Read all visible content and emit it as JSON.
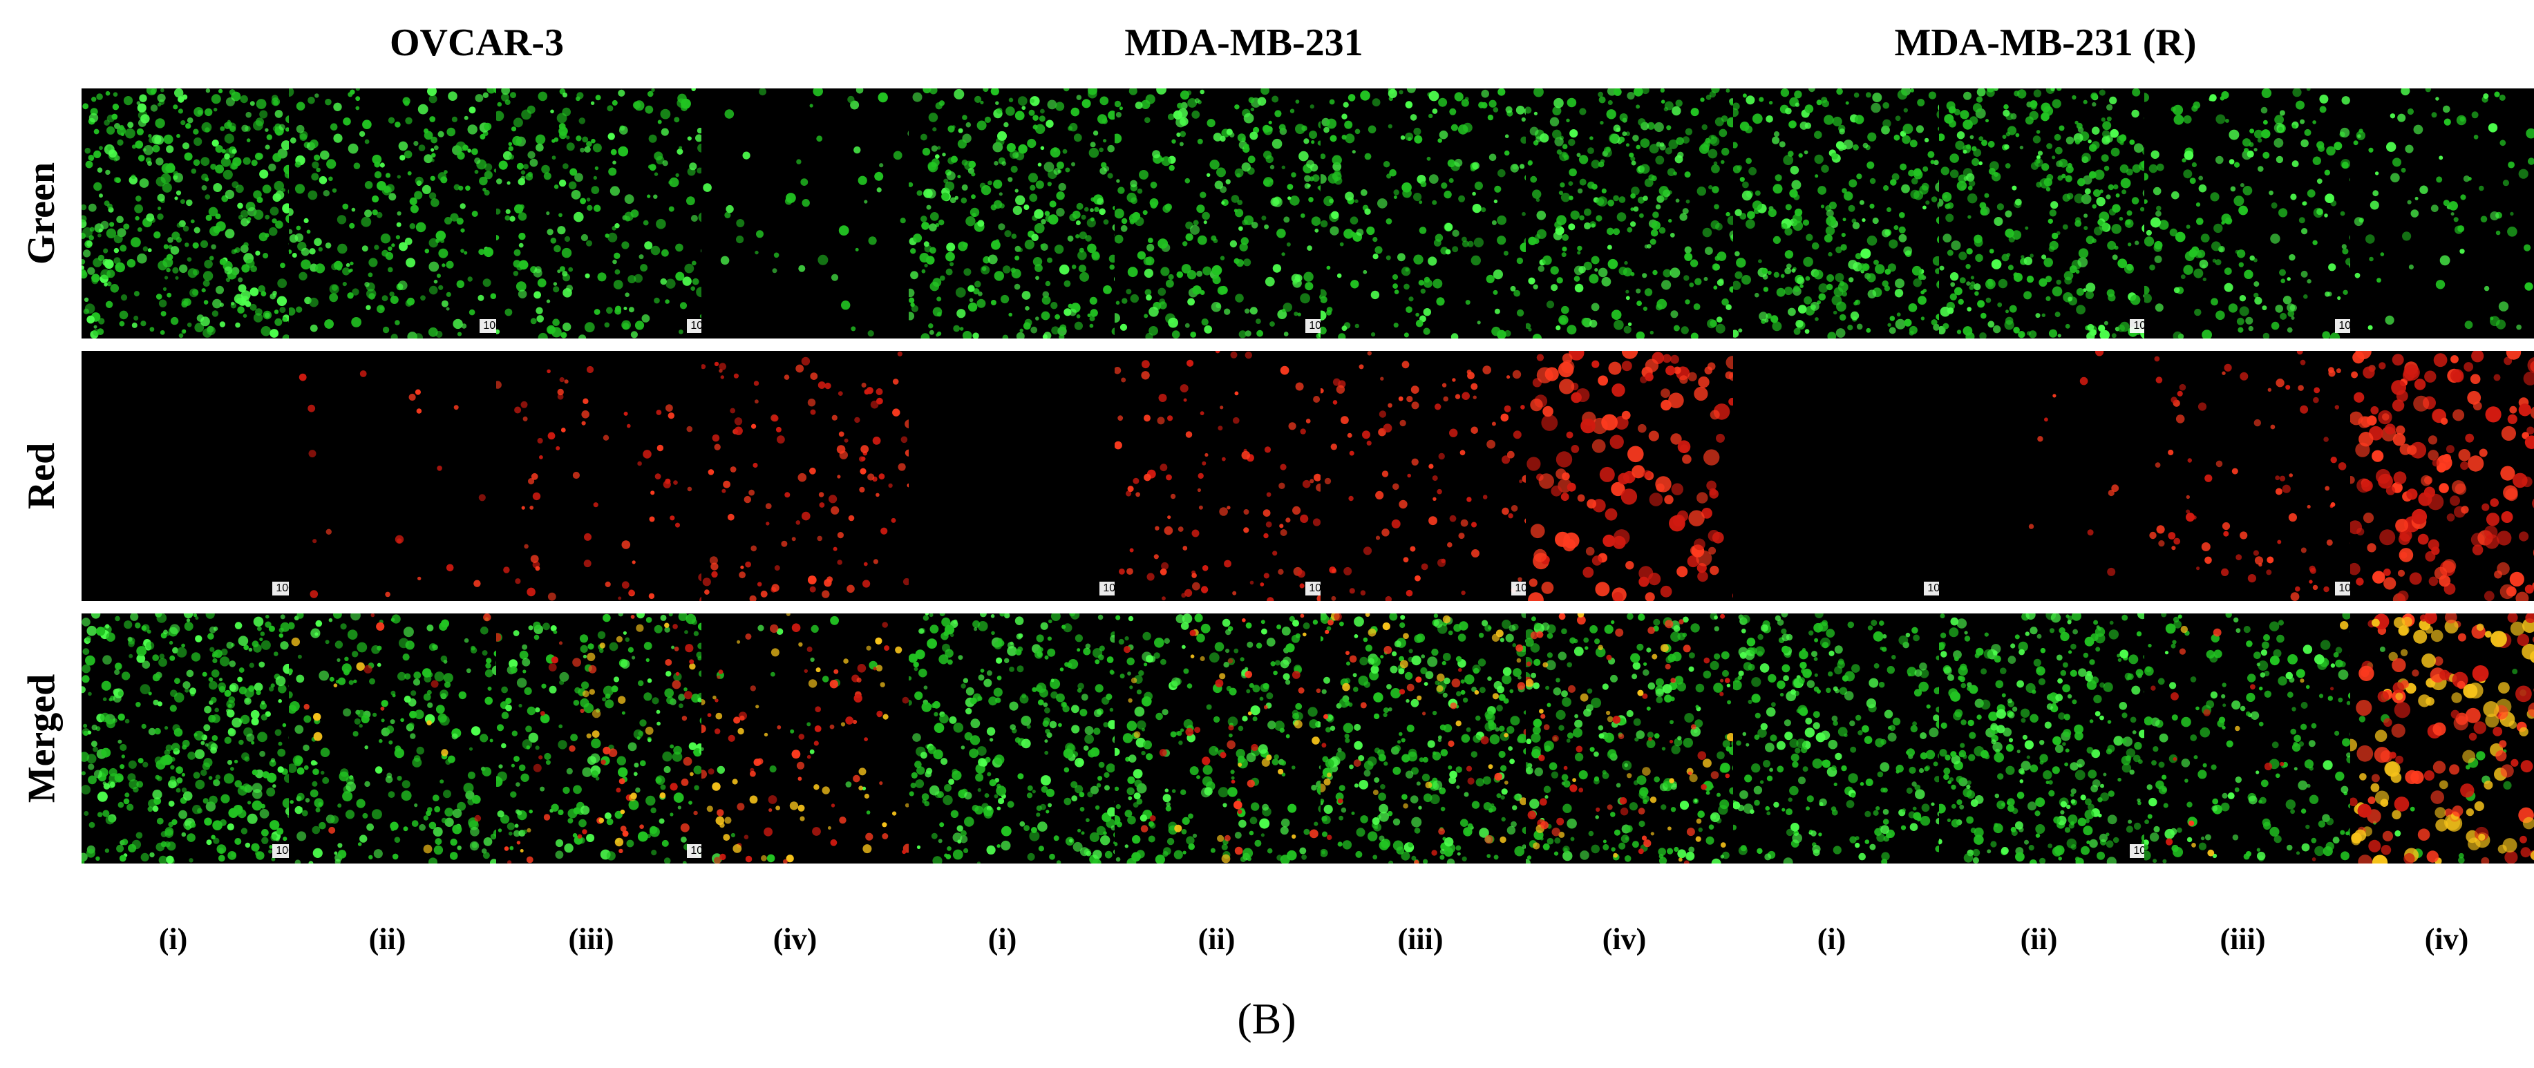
{
  "figure": {
    "panel_letter": "(B)",
    "row_labels": [
      "Green",
      "Red",
      "Merged"
    ],
    "column_labels": [
      "(i)",
      "(ii)",
      "(iii)",
      "(iv)"
    ],
    "scale_bar_label": "100 µm",
    "groups": [
      {
        "title": "OVCAR-3",
        "tiles": [
          [
            {
              "channel": "green",
              "density": 0.9,
              "red": 0.0
            },
            {
              "channel": "green",
              "density": 0.55,
              "red": 0.0
            },
            {
              "channel": "green",
              "density": 0.5,
              "red": 0.0
            },
            {
              "channel": "green",
              "density": 0.1,
              "red": 0.0
            }
          ],
          [
            {
              "channel": "red",
              "density": 0.0,
              "red": 0.0
            },
            {
              "channel": "red",
              "density": 0.0,
              "red": 0.08
            },
            {
              "channel": "red",
              "density": 0.0,
              "red": 0.3
            },
            {
              "channel": "red",
              "density": 0.0,
              "red": 0.5
            }
          ],
          [
            {
              "channel": "merged",
              "density": 0.9,
              "red": 0.0
            },
            {
              "channel": "merged",
              "density": 0.55,
              "red": 0.08
            },
            {
              "channel": "merged",
              "density": 0.5,
              "red": 0.3
            },
            {
              "channel": "merged",
              "density": 0.05,
              "red": 0.5
            }
          ]
        ]
      },
      {
        "title": "MDA-MB-231",
        "tiles": [
          [
            {
              "channel": "green",
              "density": 0.7,
              "red": 0.0
            },
            {
              "channel": "green",
              "density": 0.55,
              "red": 0.0
            },
            {
              "channel": "green",
              "density": 0.45,
              "red": 0.0
            },
            {
              "channel": "green",
              "density": 0.65,
              "red": 0.0
            }
          ],
          [
            {
              "channel": "red",
              "density": 0.0,
              "red": 0.0
            },
            {
              "channel": "red",
              "density": 0.0,
              "red": 0.45
            },
            {
              "channel": "red",
              "density": 0.0,
              "red": 0.45
            },
            {
              "channel": "red",
              "density": 0.0,
              "red": 0.65
            }
          ],
          [
            {
              "channel": "merged",
              "density": 0.7,
              "red": 0.0
            },
            {
              "channel": "merged",
              "density": 0.55,
              "red": 0.2
            },
            {
              "channel": "merged",
              "density": 0.7,
              "red": 0.25
            },
            {
              "channel": "merged",
              "density": 0.55,
              "red": 0.4
            }
          ]
        ]
      },
      {
        "title": "MDA-MB-231 (R)",
        "tiles": [
          [
            {
              "channel": "green",
              "density": 0.65,
              "red": 0.0
            },
            {
              "channel": "green",
              "density": 0.75,
              "red": 0.0
            },
            {
              "channel": "green",
              "density": 0.45,
              "red": 0.0
            },
            {
              "channel": "green",
              "density": 0.2,
              "red": 0.0
            }
          ],
          [
            {
              "channel": "red",
              "density": 0.0,
              "red": 0.0
            },
            {
              "channel": "red",
              "density": 0.0,
              "red": 0.04
            },
            {
              "channel": "red",
              "density": 0.0,
              "red": 0.35
            },
            {
              "channel": "red",
              "density": 0.0,
              "red": 0.8
            }
          ],
          [
            {
              "channel": "merged",
              "density": 0.65,
              "red": 0.0
            },
            {
              "channel": "merged",
              "density": 0.75,
              "red": 0.0
            },
            {
              "channel": "merged",
              "density": 0.45,
              "red": 0.1
            },
            {
              "channel": "merged",
              "density": 0.05,
              "red": 0.85
            }
          ]
        ]
      }
    ],
    "colors": {
      "green": "#22c422",
      "green_bright": "#4dff4d",
      "red": "#d11a10",
      "red_bright": "#ff3b1f",
      "yellow": "#f6c21a",
      "background": "#000000"
    }
  }
}
